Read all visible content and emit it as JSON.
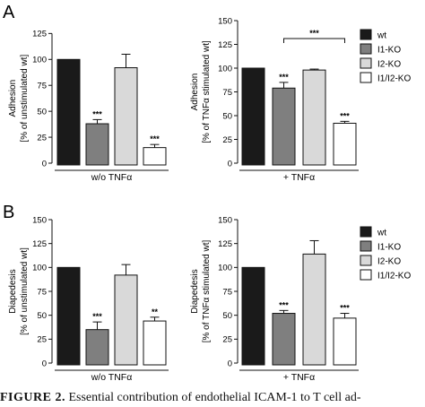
{
  "panels": {
    "A": {
      "letter": "A"
    },
    "B": {
      "letter": "B"
    }
  },
  "legend": {
    "A": [
      {
        "label": "wt",
        "color": "#1a1a1a"
      },
      {
        "label": "I1-KO",
        "color": "#7f7f7f"
      },
      {
        "label": "I2-KO",
        "color": "#d9d9d9"
      },
      {
        "label": "I1/I2-KO",
        "color": "#ffffff"
      }
    ],
    "B": [
      {
        "label": "wt",
        "color": "#1a1a1a"
      },
      {
        "label": "I1-KO",
        "color": "#7f7f7f"
      },
      {
        "label": "I2-KO",
        "color": "#d9d9d9"
      },
      {
        "label": "I1/I2-KO",
        "color": "#ffffff"
      }
    ]
  },
  "chart_data": [
    {
      "id": "A-left",
      "type": "bar",
      "panel": "A",
      "ylabel": [
        "Adhesion",
        "[% of unstimulated wt]"
      ],
      "group_label": "w/o TNFα",
      "ylim": [
        0,
        140
      ],
      "yticks": [
        0,
        25,
        50,
        75,
        100,
        125
      ],
      "categories": [
        "wt",
        "I1-KO",
        "I2-KO",
        "I1/I2-KO"
      ],
      "values": [
        100,
        38,
        92,
        15
      ],
      "errors": [
        0,
        4,
        13,
        3
      ],
      "significance": [
        "",
        "***",
        "",
        "***"
      ]
    },
    {
      "id": "A-right",
      "type": "bar",
      "panel": "A",
      "ylabel": [
        "Adhesion",
        "[% of TNFα stimulated wt]"
      ],
      "group_label": "+ TNFα",
      "ylim": [
        0,
        150
      ],
      "yticks": [
        0,
        25,
        50,
        75,
        100,
        125,
        150
      ],
      "categories": [
        "wt",
        "I1-KO",
        "I2-KO",
        "I1/I2-KO"
      ],
      "values": [
        100,
        79,
        98,
        42
      ],
      "errors": [
        0,
        6,
        1,
        2
      ],
      "significance": [
        "",
        "***",
        "",
        "***"
      ],
      "bracket": {
        "from": 1,
        "to": 3,
        "label": "***"
      }
    },
    {
      "id": "B-left",
      "type": "bar",
      "panel": "B",
      "ylabel": [
        "Diapedesis",
        "[% of unstimulated wt]"
      ],
      "group_label": "w/o TNFα",
      "ylim": [
        0,
        150
      ],
      "yticks": [
        0,
        25,
        50,
        75,
        100,
        125,
        150
      ],
      "categories": [
        "wt",
        "I1-KO",
        "I2-KO",
        "I1/I2-KO"
      ],
      "values": [
        100,
        35,
        92,
        44
      ],
      "errors": [
        0,
        8,
        11,
        4
      ],
      "significance": [
        "",
        "***",
        "",
        "**"
      ]
    },
    {
      "id": "B-right",
      "type": "bar",
      "panel": "B",
      "ylabel": [
        "Diapedesis",
        "[% of TNFα stimulated wt]"
      ],
      "group_label": "+ TNFα",
      "ylim": [
        0,
        150
      ],
      "yticks": [
        0,
        25,
        50,
        75,
        100,
        125,
        150
      ],
      "categories": [
        "wt",
        "I1-KO",
        "I2-KO",
        "I1/I2-KO"
      ],
      "values": [
        100,
        52,
        114,
        47
      ],
      "errors": [
        0,
        3,
        14,
        5
      ],
      "significance": [
        "",
        "***",
        "",
        "***"
      ]
    }
  ],
  "caption": {
    "label": "FIGURE 2.",
    "text": "Essential contribution of endothelial ICAM-1 to T cell ad-"
  }
}
